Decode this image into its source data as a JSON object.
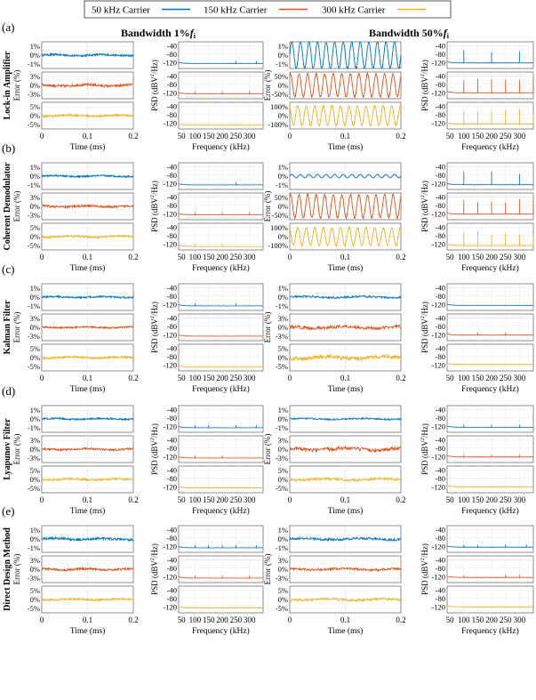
{
  "legend": {
    "placement": "top-center",
    "entries": [
      {
        "label": "50 kHz Carrier",
        "color": "#0072BD"
      },
      {
        "label": "150 kHz Carrier",
        "color": "#D95319"
      },
      {
        "label": "300 kHz Carrier",
        "color": "#EDB120"
      }
    ]
  },
  "column_headers": {
    "left": {
      "prefix": "Bandwidth 1%",
      "symbol": "f",
      "subscript": "i"
    },
    "right": {
      "prefix": "Bandwidth 50%",
      "symbol": "f",
      "subscript": "i"
    }
  },
  "axis_labels": {
    "error_ylabel": "Error (%)",
    "psd_ylabel_prefix": "PSD (dBV",
    "psd_ylabel_sup": "2",
    "psd_ylabel_suffix": "/Hz)",
    "time_xlabel": "Time (ms)",
    "freq_xlabel": "Frequency (kHz)"
  },
  "time_ticks": [
    "0",
    "0.1",
    "0.2"
  ],
  "freq_ticks": [
    "50",
    "100",
    "150",
    "200",
    "250",
    "300"
  ],
  "psd_ticks": [
    "-40",
    "-80",
    "-120"
  ],
  "chart_data": {
    "type": "line",
    "grid": true,
    "time_axis": {
      "label": "Time (ms)",
      "range": [
        0,
        0.2
      ],
      "ticks": [
        0,
        0.1,
        0.2
      ]
    },
    "freq_axis": {
      "label": "Frequency (kHz)",
      "range": [
        40,
        350
      ],
      "ticks": [
        50,
        100,
        150,
        200,
        250,
        300
      ]
    },
    "psd_axis": {
      "label": "PSD (dBV²/Hz)",
      "range": [
        -140,
        -30
      ],
      "ticks": [
        -40,
        -80,
        -120
      ]
    },
    "carriers_khz": [
      50,
      150,
      300
    ],
    "rows": [
      {
        "letter": "(a)",
        "method": "Lock-in Amplifier",
        "panels": [
          {
            "bandwidth": "1%",
            "error_ticks": [
              [
                "1%",
                "0%",
                "-1%"
              ],
              [
                "3%",
                "0%",
                "-3%"
              ],
              [
                "5%",
                "0%",
                "-5%"
              ]
            ],
            "error_amplitude_pct": [
              0.25,
              0.9,
              1.3
            ],
            "error_oscillation": false,
            "psd_floor_dB": [
              -125,
              -125,
              -130
            ],
            "psd_spikes_khz": [
              [
                250,
                325
              ],
              [
                100,
                200,
                300
              ],
              []
            ]
          },
          {
            "bandwidth": "50%",
            "error_ticks": [
              [
                "1%",
                "0%",
                "-1%"
              ],
              [
                "50%",
                "0%",
                "-50%"
              ],
              [
                "100%",
                "0%",
                "-100%"
              ]
            ],
            "error_amplitude_pct": [
              1.5,
              65,
              110
            ],
            "error_oscillation": true,
            "psd_floor_dB": [
              -122,
              -120,
              -125
            ],
            "psd_spikes_khz": [
              [
                100,
                200,
                300
              ],
              [
                100,
                150,
                200,
                250,
                300,
                350
              ],
              [
                100,
                150,
                200,
                250,
                300,
                350
              ]
            ]
          }
        ]
      },
      {
        "letter": "(b)",
        "method": "Coherent Demodulator",
        "panels": [
          {
            "bandwidth": "1%",
            "error_ticks": [
              [
                "1%",
                "0%",
                "-1%"
              ],
              [
                "3%",
                "0%",
                "-3%"
              ],
              [
                "5%",
                "0%",
                "-5%"
              ]
            ],
            "error_amplitude_pct": [
              0.2,
              0.8,
              1.2
            ],
            "error_oscillation": false,
            "psd_floor_dB": [
              -127,
              -125,
              -132
            ],
            "psd_spikes_khz": [
              [
                250
              ],
              [
                100,
                200,
                300
              ],
              [
                100,
                200
              ]
            ]
          },
          {
            "bandwidth": "50%",
            "error_ticks": [
              [
                "1%",
                "0%",
                "-1%"
              ],
              [
                "50%",
                "0%",
                "-50%"
              ],
              [
                "100%",
                "0%",
                "-100%"
              ]
            ],
            "error_amplitude_pct": [
              0.2,
              65,
              100
            ],
            "error_oscillation": true,
            "psd_floor_dB": [
              -126,
              -122,
              -128
            ],
            "psd_spikes_khz": [
              [
                100,
                200,
                300
              ],
              [
                100,
                150,
                200,
                250,
                300,
                350
              ],
              [
                100,
                150,
                200,
                250,
                300,
                350
              ]
            ]
          }
        ]
      },
      {
        "letter": "(c)",
        "method": "Kalman Filter",
        "panels": [
          {
            "bandwidth": "1%",
            "error_ticks": [
              [
                "1%",
                "0%",
                "-1%"
              ],
              [
                "3%",
                "0%",
                "-3%"
              ],
              [
                "5%",
                "0%",
                "-5%"
              ]
            ],
            "error_amplitude_pct": [
              0.2,
              0.6,
              1.3
            ],
            "error_oscillation": false,
            "psd_floor_dB": [
              -127,
              -127,
              -130
            ],
            "psd_spikes_khz": [
              [
                100,
                250
              ],
              [],
              []
            ]
          },
          {
            "bandwidth": "50%",
            "error_ticks": [
              [
                "1%",
                "0%",
                "-1%"
              ],
              [
                "3%",
                "0%",
                "-3%"
              ],
              [
                "5%",
                "0%",
                "-5%"
              ]
            ],
            "error_amplitude_pct": [
              0.25,
              1.2,
              2.5
            ],
            "error_oscillation": false,
            "psd_floor_dB": [
              -125,
              -122,
              -118
            ],
            "psd_spikes_khz": [
              [],
              [
                150,
                250
              ],
              []
            ]
          }
        ]
      },
      {
        "letter": "(d)",
        "method": "Lyapunov Filter",
        "panels": [
          {
            "bandwidth": "1%",
            "error_ticks": [
              [
                "1%",
                "0%",
                "-1%"
              ],
              [
                "3%",
                "0%",
                "-3%"
              ],
              [
                "5%",
                "0%",
                "-5%"
              ]
            ],
            "error_amplitude_pct": [
              0.2,
              0.7,
              1.2
            ],
            "error_oscillation": false,
            "psd_floor_dB": [
              -127,
              -127,
              -125
            ],
            "psd_spikes_khz": [
              [
                100,
                150,
                250,
                325
              ],
              [
                100,
                200
              ],
              []
            ]
          },
          {
            "bandwidth": "50%",
            "error_ticks": [
              [
                "1%",
                "0%",
                "-1%"
              ],
              [
                "3%",
                "0%",
                "-3%"
              ],
              [
                "5%",
                "0%",
                "-5%"
              ]
            ],
            "error_amplitude_pct": [
              0.2,
              1.4,
              1.6
            ],
            "error_oscillation": false,
            "psd_floor_dB": [
              -125,
              -122,
              -120
            ],
            "psd_spikes_khz": [
              [
                100,
                200,
                300
              ],
              [
                100,
                200,
                300
              ],
              []
            ]
          }
        ]
      },
      {
        "letter": "(e)",
        "method": "Direct Design Method",
        "panels": [
          {
            "bandwidth": "1%",
            "error_ticks": [
              [
                "1%",
                "0%",
                "-1%"
              ],
              [
                "3%",
                "0%",
                "-3%"
              ],
              [
                "5%",
                "0%",
                "-5%"
              ]
            ],
            "error_amplitude_pct": [
              0.3,
              0.8,
              1.2
            ],
            "error_oscillation": false,
            "psd_floor_dB": [
              -127,
              -127,
              -125
            ],
            "psd_spikes_khz": [
              [
                100,
                150,
                200,
                250,
                325
              ],
              [
                100,
                200,
                300
              ],
              []
            ]
          },
          {
            "bandwidth": "50%",
            "error_ticks": [
              [
                "1%",
                "0%",
                "-1%"
              ],
              [
                "3%",
                "0%",
                "-3%"
              ],
              [
                "5%",
                "0%",
                "-5%"
              ]
            ],
            "error_amplitude_pct": [
              0.3,
              0.9,
              1.5
            ],
            "error_oscillation": false,
            "psd_floor_dB": [
              -124,
              -124,
              -120
            ],
            "psd_spikes_khz": [
              [
                100,
                150,
                250,
                325
              ],
              [
                100,
                250,
                300
              ],
              []
            ]
          }
        ]
      }
    ]
  }
}
